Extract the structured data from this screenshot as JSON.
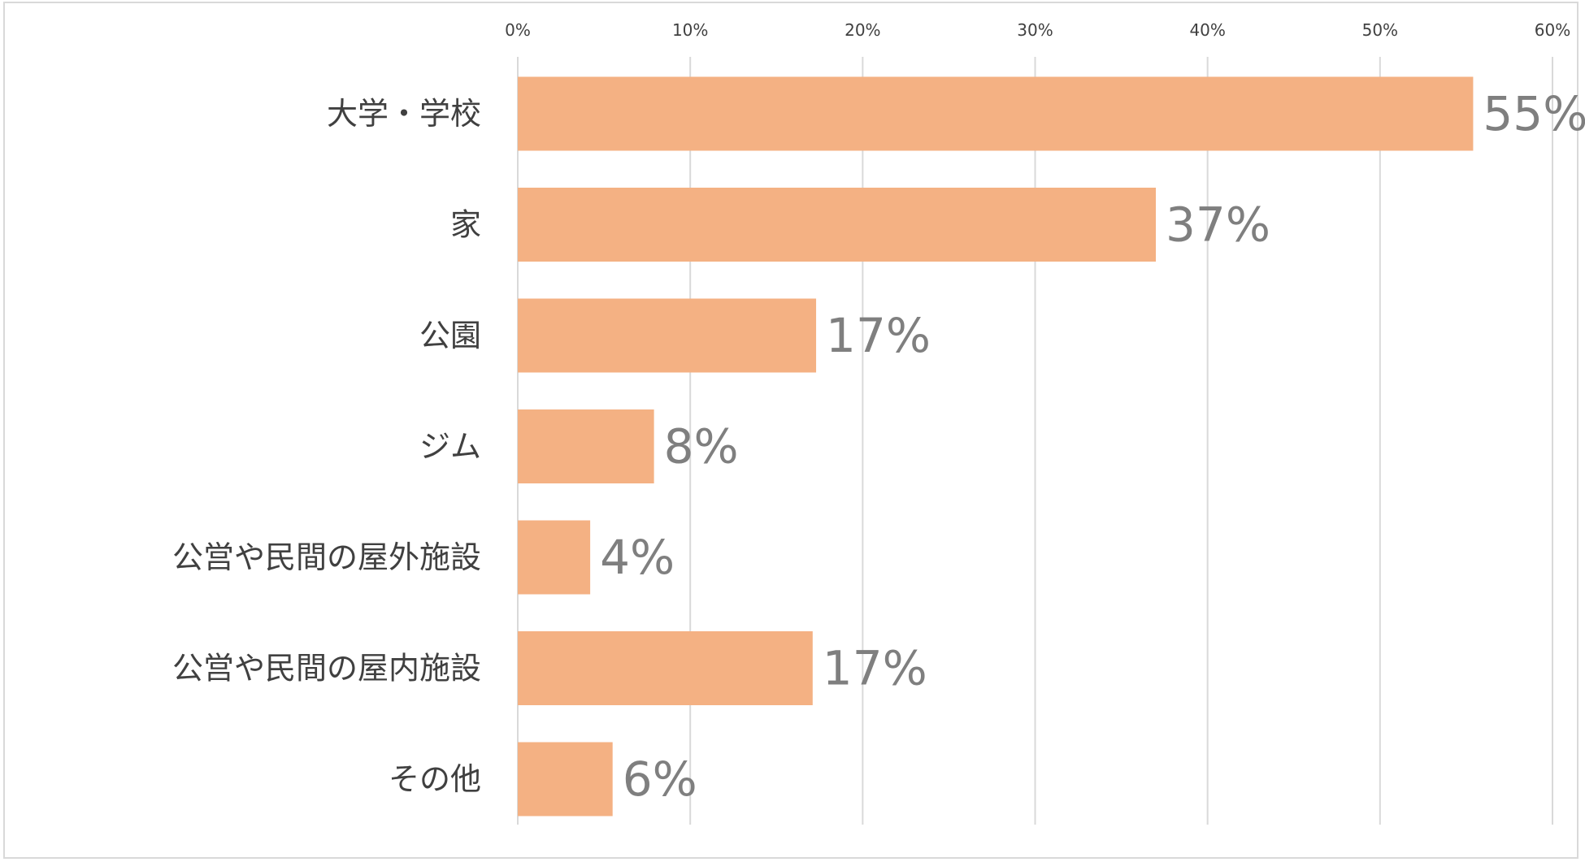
{
  "chart_data": {
    "type": "bar",
    "orientation": "horizontal",
    "categories": [
      "大学・学校",
      "家",
      "公園",
      "ジム",
      "公営や民間の屋外施設",
      "公営や民間の屋内施設",
      "その他"
    ],
    "values": [
      55.4,
      37.0,
      17.3,
      7.9,
      4.2,
      17.1,
      5.5
    ],
    "data_labels": [
      "55%",
      "37%",
      "17%",
      "8%",
      "4%",
      "17%",
      "6%"
    ],
    "xlim": [
      0,
      60
    ],
    "x_ticks": [
      0,
      10,
      20,
      30,
      40,
      50,
      60
    ],
    "x_tick_labels": [
      "0%",
      "10%",
      "20%",
      "30%",
      "40%",
      "50%",
      "60%"
    ],
    "x_axis_position": "top",
    "grid": true,
    "legend": "none",
    "title": "",
    "xlabel": "",
    "ylabel": "",
    "colors": {
      "bar": "#f4b183",
      "gridline": "#d9d9d9",
      "data_label": "#7f7f7f",
      "axis_text": "#404040",
      "frame": "#d9d9d9"
    }
  }
}
